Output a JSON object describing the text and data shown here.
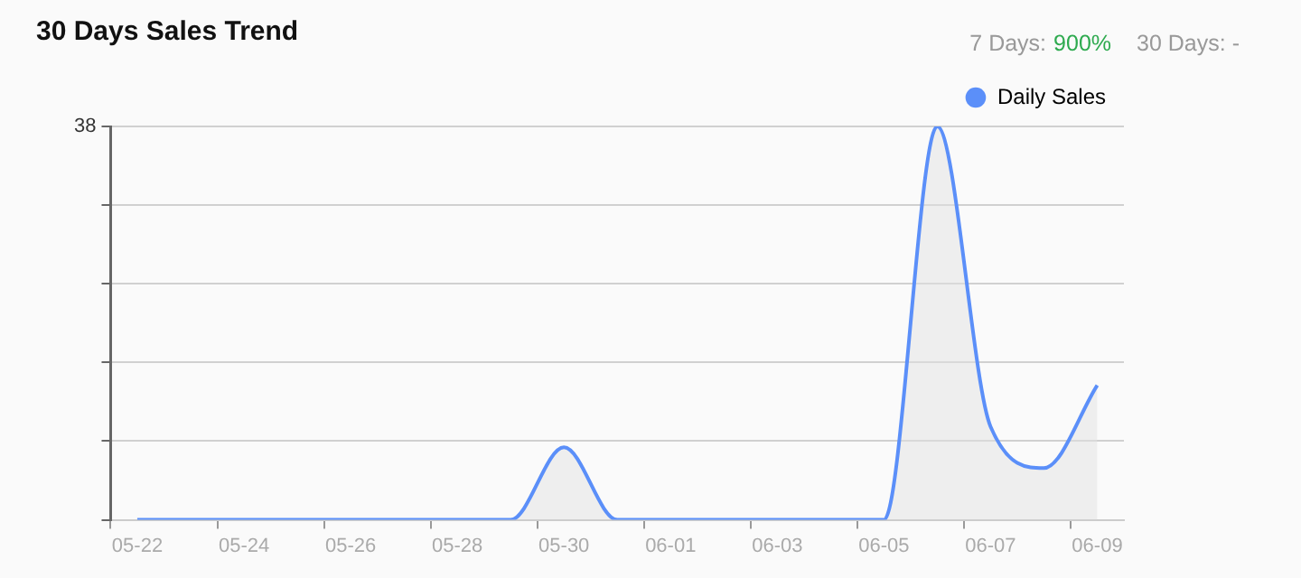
{
  "chart_data": {
    "type": "area",
    "title": "30 Days Sales Trend",
    "annotations": [
      "7 Days:",
      "900%",
      "30 Days: -"
    ],
    "categories": [
      "05-22",
      null,
      "05-24",
      null,
      "05-26",
      null,
      "05-28",
      null,
      "05-30",
      null,
      "06-01",
      null,
      "06-03",
      null,
      "06-05",
      null,
      "06-07",
      null,
      "06-09"
    ],
    "series": [
      {
        "name": "Daily Sales",
        "color": "#5b8ff9",
        "values": [
          0,
          0,
          0,
          0,
          0,
          0,
          0,
          0,
          7,
          0,
          0,
          0,
          0,
          0,
          0,
          38,
          9,
          5,
          13
        ]
      }
    ],
    "ylim": [
      0,
      38
    ],
    "yticks": [
      {
        "value": 0,
        "label": null
      },
      {
        "value": 7.6,
        "label": null
      },
      {
        "value": 15.2,
        "label": null
      },
      {
        "value": 22.8,
        "label": null
      },
      {
        "value": 30.4,
        "label": null
      },
      38
    ],
    "grid": "y",
    "legend": "top right",
    "marker": "none",
    "line_style": "solid"
  }
}
